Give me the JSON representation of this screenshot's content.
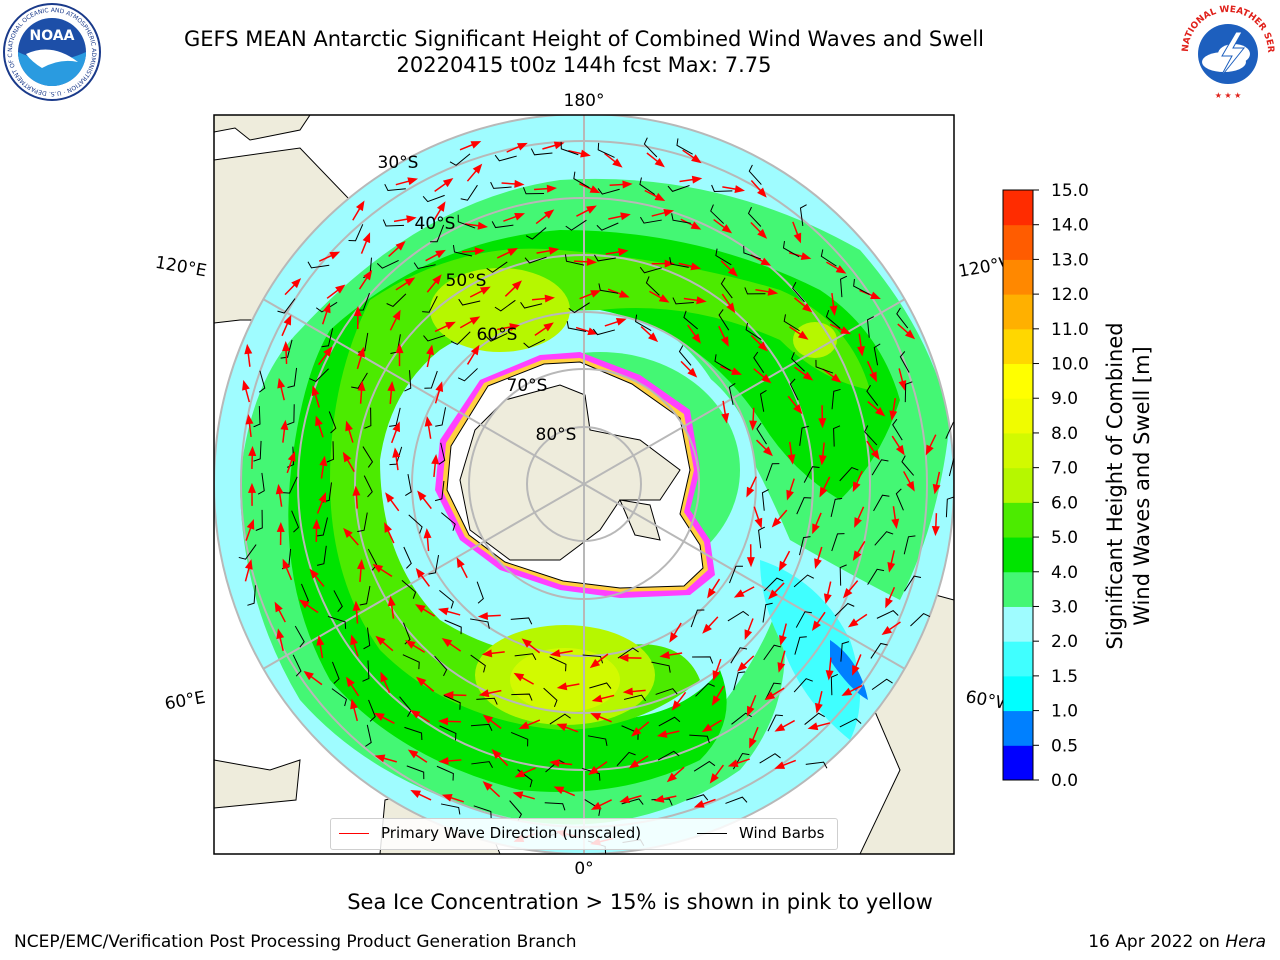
{
  "header": {
    "title_line1": "GEFS MEAN Antarctic Significant Height of Combined Wind Waves and Swell",
    "title_line2": "20220415 t00z 144h fcst   Max: 7.75"
  },
  "logos": {
    "noaa_text": "NOAA",
    "noaa_ring_text": "NATIONAL OCEANIC AND ATMOSPHERIC ADMINISTRATION · U.S. DEPARTMENT OF COMMERCE",
    "nws_ring_text": "NATIONAL WEATHER SERVICE"
  },
  "map": {
    "longitude_labels": {
      "top": "180°",
      "bottom": "0°",
      "upper_left": "120°E",
      "upper_right": "120°W",
      "lower_left": "60°E",
      "lower_right": "60°W"
    },
    "latitude_labels": [
      "30°S",
      "40°S",
      "50°S",
      "60°S",
      "70°S",
      "80°S"
    ],
    "colors": {
      "land": "#eeecdc",
      "ice_shelf": "#ffffff",
      "sea_ice_edge": [
        "#ff40ff",
        "#ffd040"
      ],
      "wave_arrow": "#ff0000",
      "wind_barb": "#000000",
      "graticule": "#b8b8b8"
    }
  },
  "colorbar": {
    "label_line1": "Significant Height of Combined",
    "label_line2": "Wind Waves and Swell [m]",
    "ticks": [
      "0.0",
      "0.5",
      "1.0",
      "1.5",
      "2.0",
      "3.0",
      "4.0",
      "5.0",
      "6.0",
      "7.0",
      "8.0",
      "9.0",
      "10.0",
      "11.0",
      "12.0",
      "13.0",
      "14.0",
      "15.0"
    ],
    "colors": [
      "#0000ff",
      "#0080ff",
      "#00ffff",
      "#40ffff",
      "#9ffcff",
      "#44f774",
      "#00e400",
      "#4ceb00",
      "#b6f700",
      "#d2fa00",
      "#f0fc00",
      "#ffff00",
      "#ffd700",
      "#ffb000",
      "#ff8800",
      "#ff5c00",
      "#ff2c00",
      "#ff0000"
    ]
  },
  "legend": {
    "wave_label": "Primary Wave Direction (unscaled)",
    "wind_label": "Wind Barbs"
  },
  "caption": "Sea Ice Concentration > 15% is shown in pink to yellow",
  "footer": {
    "left": "NCEP/EMC/Verification Post Processing Product Generation Branch",
    "right_date": "16 Apr 2022 on ",
    "right_host": "Hera"
  }
}
